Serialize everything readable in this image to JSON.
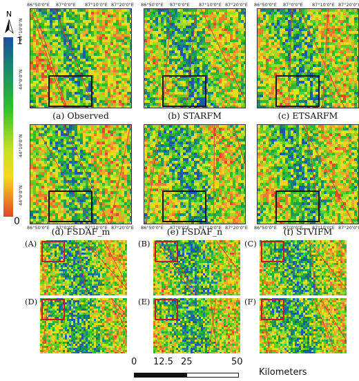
{
  "north_label": "N",
  "colorbar": {
    "max_label": "1",
    "min_label": "0"
  },
  "lon_ticks": [
    "86°50'0\"E",
    "87°0'0\"E",
    "87°10'0\"E",
    "87°20'0\"E"
  ],
  "lat_ticks": [
    "44°10'0\"N",
    "44°0'0\"N"
  ],
  "top_lon_ticks": [
    "86°50'0\"E",
    "87°0'0\"E",
    "87°10'0\"E",
    "87°20'0\"E"
  ],
  "top_lat_tick": "44°20'0\"N",
  "panels": [
    {
      "caption": "(a) Observed"
    },
    {
      "caption": "(b) STARFM"
    },
    {
      "caption": "(c) ETSARFM"
    },
    {
      "caption": "(d) FSDAF_m"
    },
    {
      "caption": "(e) FSDAF_n"
    },
    {
      "caption": "(f) STVIFM"
    }
  ],
  "zoom_panels": [
    "(A)",
    "(B)",
    "(C)",
    "(D)",
    "(E)",
    "(F)"
  ],
  "scalebar": {
    "ticks": [
      "0",
      "12.5",
      "25",
      "50"
    ],
    "unit": "Kilometers"
  },
  "colors": {
    "roi": "#111111",
    "zoom_roi": "#d0112b",
    "low": "#e0492a",
    "mid": "#f2e21e",
    "high": "#1a5aa6",
    "green": "#2fc22b"
  }
}
